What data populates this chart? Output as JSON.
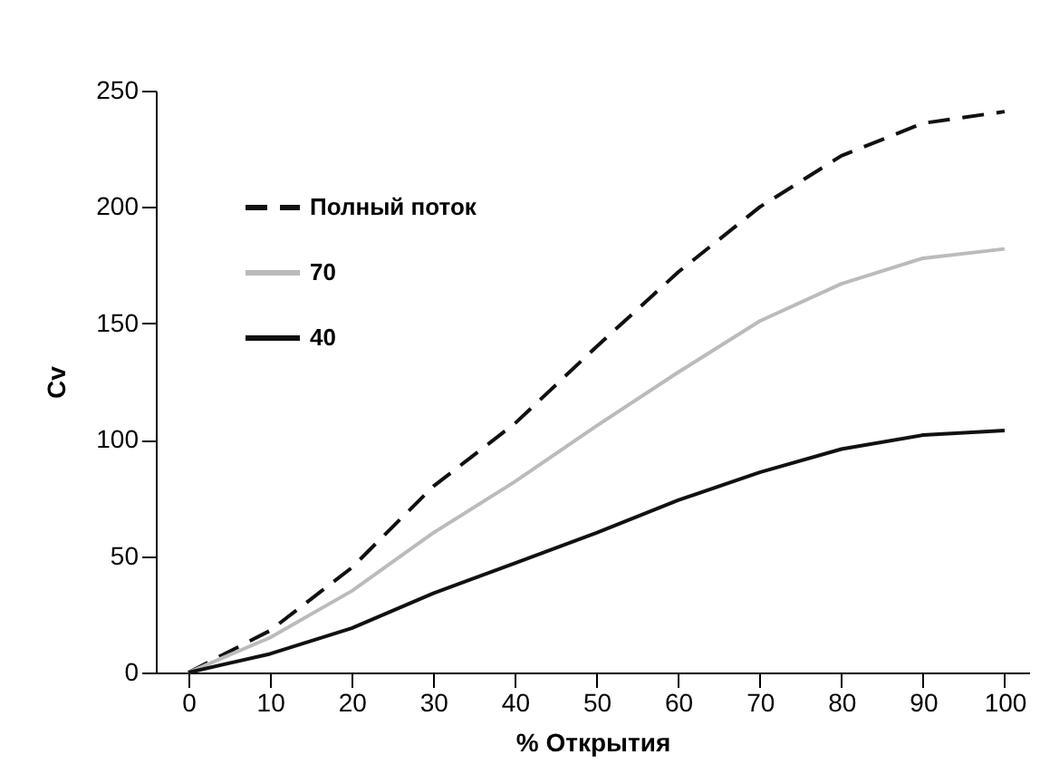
{
  "chart_data": {
    "type": "line",
    "xlabel": "% Открытия",
    "ylabel": "Cv",
    "x": [
      0,
      10,
      20,
      30,
      40,
      50,
      60,
      70,
      80,
      90,
      100
    ],
    "series": [
      {
        "name": "Полный поток",
        "color": "#111111",
        "line_style": "dashed",
        "values": [
          0,
          18,
          45,
          80,
          107,
          140,
          172,
          200,
          222,
          236,
          241
        ]
      },
      {
        "name": "70",
        "color": "#bbbbbb",
        "line_style": "solid",
        "values": [
          0,
          15,
          35,
          60,
          82,
          106,
          129,
          151,
          167,
          178,
          182
        ]
      },
      {
        "name": "40",
        "color": "#111111",
        "line_style": "solid",
        "values": [
          0,
          8,
          19,
          34,
          47,
          60,
          74,
          86,
          96,
          102,
          104
        ]
      }
    ],
    "xlim": [
      -4,
      103
    ],
    "xticks": [
      0,
      10,
      20,
      30,
      40,
      50,
      60,
      70,
      80,
      90,
      100
    ],
    "ylim": [
      0,
      250
    ],
    "yticks": [
      0,
      50,
      100,
      150,
      200,
      250
    ],
    "grid": false,
    "legend": "top left",
    "marker": "none"
  }
}
